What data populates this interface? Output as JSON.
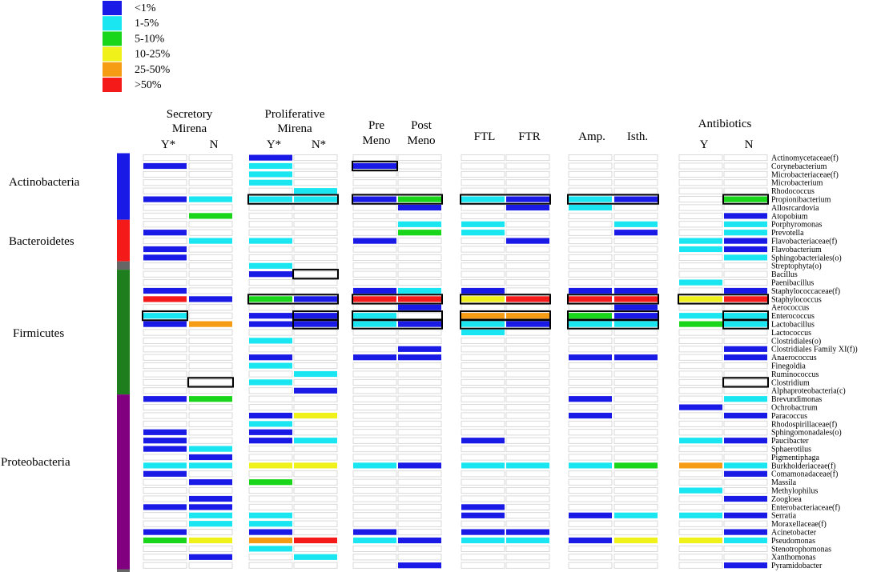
{
  "colors": {
    "lt1": "#1a1ae6",
    "p1_5": "#19e6f0",
    "p5_10": "#1ad61a",
    "p10_25": "#f0f01a",
    "p25_50": "#f59b14",
    "gt50": "#f51a1a",
    "empty": "#ffffff",
    "outline": "#000000",
    "grid": "#d0d0d0"
  },
  "chart_data": {
    "type": "heatmap",
    "title": "",
    "legend": [
      {
        "key": "lt1",
        "label": "<1%"
      },
      {
        "key": "p1_5",
        "label": "1-5%"
      },
      {
        "key": "p5_10",
        "label": "5-10%"
      },
      {
        "key": "p10_25",
        "label": "10-25%"
      },
      {
        "key": "p25_50",
        "label": "25-50%"
      },
      {
        "key": "gt50",
        "label": ">50%"
      }
    ],
    "groups": [
      {
        "lines": [
          "Secretory",
          "Mirena"
        ],
        "columns": [
          "Y*",
          "N"
        ]
      },
      {
        "lines": [
          "Proliferative",
          "Mirena"
        ],
        "columns": [
          "Y*",
          "N*"
        ]
      },
      {
        "lines": [],
        "columns": [
          "Pre\nMeno",
          "Post\nMeno"
        ]
      },
      {
        "lines": [],
        "columns": [
          "FTL",
          "FTR"
        ]
      },
      {
        "lines": [],
        "columns": [
          "Amp.",
          "Isth."
        ]
      },
      {
        "lines": [
          "Antibiotics"
        ],
        "columns": [
          "Y",
          "N"
        ]
      }
    ],
    "phyla": [
      {
        "name": "Actinobacteria",
        "color": "#1a1ae6",
        "start": 0,
        "end": 7
      },
      {
        "name": "Bacteroidetes",
        "color": "#f51a1a",
        "start": 8,
        "end": 12
      },
      {
        "name": "",
        "color": "#666666",
        "start": 13,
        "end": 13
      },
      {
        "name": "Firmicutes",
        "color": "#1e7e1e",
        "start": 14,
        "end": 28
      },
      {
        "name": "Proteobacteria",
        "color": "#800080",
        "start": 29,
        "end": 49
      },
      {
        "name": "",
        "color": "#666666",
        "start": 50,
        "end": 50
      }
    ],
    "taxa": [
      "Actinomycetaceae(f)",
      "Corynebacterium",
      "Microbacteriaceae(f)",
      "Microbacterium",
      "Rhodococcus",
      "Propionibacterium",
      "Allosrcardovia",
      "Atopobium",
      "Porphyromonas",
      "Prevotella",
      "Flavobacteriaceae(f)",
      "Flavobacterium",
      "Sphingobacteriales(o)",
      "Streptophyta(o)",
      "Bacillus",
      "Paenibacillus",
      "Staphylococcaceae(f)",
      "Staphylococcus",
      "Aerococcus",
      "Enterococcus",
      "Lactobacillus",
      "Lactococcus",
      "Clostridiales(o)",
      "Clostridiales Family XI(f))",
      "Anaerococcus",
      "Finegoldia",
      "Ruminococcus",
      "Clostridium",
      "Alphaproteobacteria(c)",
      "Brevundimonas",
      "Ochrobactrum",
      "Paracoccus",
      "Rhodospirillaceae(f)",
      "Sphingomonadales(o)",
      "Paucibacter",
      "Sphaerotilus",
      "Pigmentiphaga",
      "Burkholderiaceae(f)",
      "Comamonadaceae(f)",
      "Massila",
      "Methylophilus",
      "Zoogloea",
      "Enterobacteriaceae(f)",
      "Serratia",
      "Moraxellaceae(f)",
      "Acinetobacter",
      "Pseudomonas",
      "Stenotrophomonas",
      "Xanthomonas",
      "Pyramidobacter"
    ],
    "cells": {
      "Actinomycetaceae(f)": [
        0,
        0,
        1,
        0,
        0,
        0,
        0,
        0,
        0,
        0,
        0,
        0
      ],
      "Corynebacterium": [
        1,
        0,
        2,
        0,
        1,
        0,
        0,
        0,
        0,
        0,
        0,
        0
      ],
      "Microbacteriaceae(f)": [
        0,
        0,
        2,
        0,
        0,
        0,
        0,
        0,
        0,
        0,
        0,
        0
      ],
      "Microbacterium": [
        0,
        0,
        2,
        0,
        0,
        0,
        0,
        0,
        0,
        0,
        0,
        0
      ],
      "Rhodococcus": [
        0,
        0,
        0,
        2,
        0,
        0,
        0,
        0,
        0,
        0,
        0,
        0
      ],
      "Propionibacterium": [
        1,
        2,
        2,
        2,
        1,
        3,
        2,
        1,
        2,
        1,
        0,
        3
      ],
      "Allosrcardovia": [
        0,
        0,
        0,
        0,
        0,
        1,
        0,
        1,
        2,
        0,
        0,
        0
      ],
      "Atopobium": [
        0,
        3,
        0,
        0,
        0,
        0,
        0,
        0,
        0,
        0,
        0,
        1
      ],
      "Porphyromonas": [
        0,
        0,
        0,
        0,
        0,
        2,
        2,
        0,
        0,
        2,
        0,
        2
      ],
      "Prevotella": [
        1,
        0,
        0,
        0,
        0,
        3,
        2,
        0,
        0,
        1,
        0,
        2
      ],
      "Flavobacteriaceae(f)": [
        0,
        2,
        2,
        0,
        1,
        0,
        0,
        1,
        0,
        0,
        2,
        1
      ],
      "Flavobacterium": [
        1,
        0,
        0,
        0,
        0,
        0,
        0,
        0,
        0,
        0,
        2,
        1
      ],
      "Sphingobacteriales(o)": [
        1,
        0,
        0,
        0,
        0,
        0,
        0,
        0,
        0,
        0,
        0,
        2
      ],
      "Streptophyta(o)": [
        0,
        0,
        2,
        0,
        0,
        0,
        0,
        0,
        0,
        0,
        0,
        0
      ],
      "Bacillus": [
        0,
        0,
        1,
        0,
        0,
        0,
        0,
        0,
        0,
        0,
        0,
        0
      ],
      "Paenibacillus": [
        0,
        0,
        0,
        0,
        0,
        0,
        0,
        0,
        0,
        0,
        2,
        0
      ],
      "Staphylococcaceae(f)": [
        1,
        0,
        0,
        0,
        1,
        2,
        1,
        0,
        1,
        1,
        0,
        1
      ],
      "Staphylococcus": [
        6,
        1,
        3,
        1,
        6,
        6,
        4,
        6,
        6,
        6,
        4,
        6
      ],
      "Aerococcus": [
        0,
        0,
        0,
        0,
        0,
        1,
        0,
        0,
        0,
        1,
        0,
        0
      ],
      "Enterococcus": [
        2,
        0,
        1,
        1,
        2,
        0,
        5,
        5,
        3,
        1,
        2,
        2
      ],
      "Lactobacillus": [
        1,
        5,
        1,
        1,
        2,
        1,
        2,
        1,
        2,
        2,
        3,
        2
      ],
      "Lactococcus": [
        0,
        0,
        0,
        0,
        0,
        0,
        2,
        0,
        0,
        0,
        0,
        0
      ],
      "Clostridiales(o)": [
        0,
        0,
        2,
        0,
        0,
        0,
        0,
        0,
        0,
        0,
        0,
        0
      ],
      "Clostridiales Family XI(f))": [
        0,
        0,
        0,
        0,
        0,
        1,
        0,
        0,
        0,
        0,
        0,
        1
      ],
      "Anaerococcus": [
        0,
        0,
        1,
        0,
        1,
        1,
        0,
        0,
        1,
        1,
        0,
        1
      ],
      "Finegoldia": [
        0,
        0,
        2,
        0,
        0,
        0,
        0,
        0,
        0,
        0,
        0,
        0
      ],
      "Ruminococcus": [
        0,
        0,
        0,
        2,
        0,
        0,
        0,
        0,
        0,
        0,
        0,
        0
      ],
      "Clostridium": [
        0,
        0,
        2,
        0,
        0,
        0,
        0,
        0,
        0,
        0,
        0,
        0
      ],
      "Alphaproteobacteria(c)": [
        0,
        0,
        0,
        1,
        0,
        0,
        0,
        0,
        0,
        0,
        0,
        0
      ],
      "Brevundimonas": [
        1,
        3,
        0,
        0,
        0,
        0,
        0,
        0,
        1,
        0,
        0,
        2
      ],
      "Ochrobactrum": [
        0,
        0,
        0,
        0,
        0,
        0,
        0,
        0,
        0,
        0,
        1,
        0
      ],
      "Paracoccus": [
        0,
        0,
        1,
        4,
        0,
        0,
        0,
        0,
        1,
        0,
        0,
        1
      ],
      "Rhodospirillaceae(f)": [
        0,
        0,
        2,
        0,
        0,
        0,
        0,
        0,
        0,
        0,
        0,
        0
      ],
      "Sphingomonadales(o)": [
        1,
        0,
        1,
        0,
        0,
        0,
        0,
        0,
        0,
        0,
        0,
        0
      ],
      "Paucibacter": [
        1,
        0,
        1,
        2,
        0,
        0,
        1,
        0,
        0,
        0,
        2,
        1
      ],
      "Sphaerotilus": [
        1,
        2,
        0,
        0,
        0,
        0,
        0,
        0,
        0,
        0,
        0,
        0
      ],
      "Pigmentiphaga": [
        0,
        1,
        0,
        0,
        0,
        0,
        0,
        0,
        0,
        0,
        0,
        0
      ],
      "Burkholderiaceae(f)": [
        2,
        2,
        4,
        4,
        2,
        1,
        2,
        2,
        2,
        3,
        5,
        2
      ],
      "Comamonadaceae(f)": [
        1,
        0,
        0,
        0,
        0,
        0,
        0,
        0,
        0,
        0,
        0,
        1
      ],
      "Massila": [
        0,
        1,
        3,
        0,
        0,
        0,
        0,
        0,
        0,
        0,
        0,
        0
      ],
      "Methylophilus": [
        0,
        0,
        0,
        0,
        0,
        0,
        0,
        0,
        0,
        0,
        2,
        0
      ],
      "Zoogloea": [
        0,
        1,
        0,
        0,
        0,
        0,
        0,
        0,
        0,
        0,
        0,
        1
      ],
      "Enterobacteriaceae(f)": [
        1,
        1,
        0,
        0,
        0,
        0,
        1,
        0,
        0,
        0,
        0,
        0
      ],
      "Serratia": [
        0,
        2,
        2,
        0,
        0,
        0,
        1,
        0,
        1,
        2,
        2,
        1
      ],
      "Moraxellaceae(f)": [
        0,
        2,
        2,
        0,
        0,
        0,
        0,
        0,
        0,
        0,
        0,
        0
      ],
      "Acinetobacter": [
        1,
        0,
        1,
        0,
        1,
        0,
        1,
        1,
        0,
        0,
        0,
        1
      ],
      "Pseudomonas": [
        3,
        4,
        5,
        6,
        2,
        1,
        2,
        2,
        1,
        4,
        4,
        2
      ],
      "Stenotrophomonas": [
        0,
        0,
        2,
        0,
        0,
        0,
        0,
        0,
        0,
        0,
        0,
        0
      ],
      "Xanthomonas": [
        0,
        1,
        0,
        2,
        0,
        0,
        0,
        0,
        0,
        0,
        0,
        0
      ],
      "Pyramidobacter": [
        0,
        0,
        0,
        0,
        0,
        1,
        0,
        0,
        0,
        0,
        0,
        1
      ]
    },
    "highlight_boxes": [
      {
        "taxon": "Corynebacterium",
        "columns": [
          4,
          4
        ]
      },
      {
        "taxon": "Propionibacterium",
        "columns": [
          2,
          3
        ]
      },
      {
        "taxon": "Propionibacterium",
        "columns": [
          4,
          5
        ]
      },
      {
        "taxon": "Propionibacterium",
        "columns": [
          6,
          7
        ]
      },
      {
        "taxon": "Propionibacterium",
        "columns": [
          8,
          9
        ]
      },
      {
        "taxon": "Propionibacterium",
        "columns": [
          11,
          11
        ]
      },
      {
        "taxon": "Bacillus",
        "columns": [
          3,
          3
        ]
      },
      {
        "taxon": "Staphylococcus",
        "columns": [
          2,
          3
        ]
      },
      {
        "taxon": "Staphylococcus",
        "columns": [
          4,
          5
        ]
      },
      {
        "taxon": "Staphylococcus",
        "columns": [
          6,
          7
        ]
      },
      {
        "taxon": "Staphylococcus",
        "columns": [
          8,
          9
        ]
      },
      {
        "taxon": "Staphylococcus",
        "columns": [
          10,
          11
        ]
      },
      {
        "taxon": "Enterococcus",
        "columns": [
          0,
          0
        ]
      },
      {
        "taxon": "Enterococcus",
        "columns": [
          3,
          3
        ]
      },
      {
        "taxon": "Enterococcus",
        "columns": [
          4,
          5
        ]
      },
      {
        "taxon": "Enterococcus",
        "columns": [
          6,
          7
        ]
      },
      {
        "taxon": "Enterococcus",
        "columns": [
          8,
          9
        ]
      },
      {
        "taxon": "Enterococcus",
        "columns": [
          11,
          11
        ]
      },
      {
        "taxon": "Lactobacillus",
        "columns": [
          3,
          3
        ]
      },
      {
        "taxon": "Lactobacillus",
        "columns": [
          4,
          5
        ]
      },
      {
        "taxon": "Lactobacillus",
        "columns": [
          6,
          7
        ]
      },
      {
        "taxon": "Lactobacillus",
        "columns": [
          8,
          9
        ]
      },
      {
        "taxon": "Lactobacillus",
        "columns": [
          11,
          11
        ]
      },
      {
        "taxon": "Clostridium",
        "columns": [
          1,
          1
        ]
      },
      {
        "taxon": "Clostridium",
        "columns": [
          11,
          11
        ]
      }
    ]
  }
}
